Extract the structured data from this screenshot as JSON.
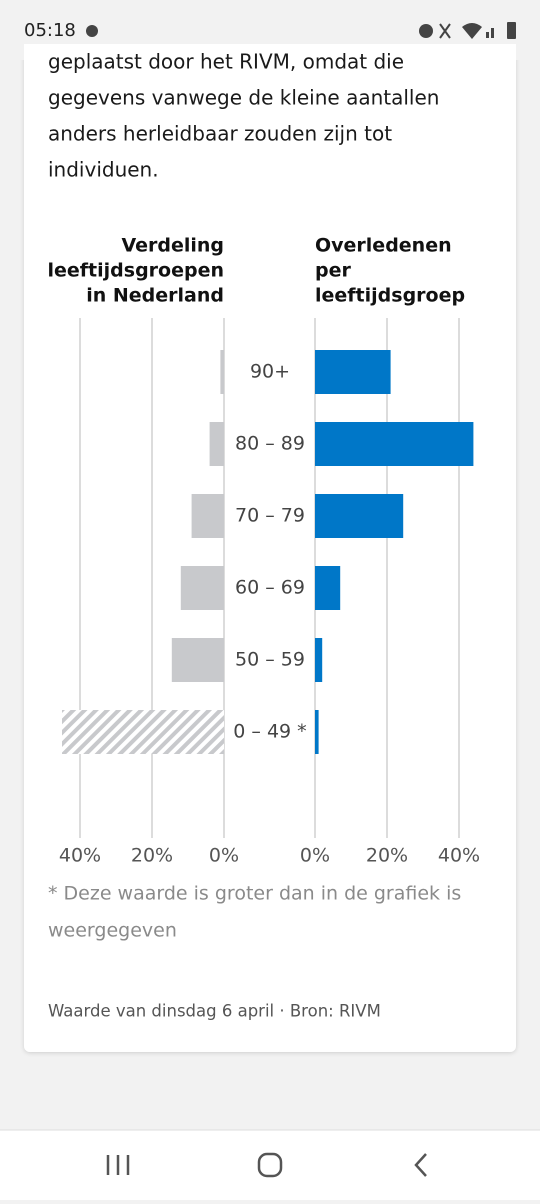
{
  "status_bar": {
    "time": "05:18"
  },
  "article": {
    "paragraph_lines": [
      "geplaatst door het RIVM, omdat die",
      "gegevens vanwege de kleine aantallen",
      "anders herleidbaar zouden zijn tot",
      "individuen."
    ]
  },
  "chart_data": {
    "type": "bar",
    "orientation": "horizontal",
    "panel_titles": [
      [
        "Verdeling",
        "leeftijdsgroepen",
        "in Nederland"
      ],
      [
        "Overledenen",
        "per",
        "leeftijdsgroep"
      ]
    ],
    "categories": [
      "90+",
      "80 – 89",
      "70 – 79",
      "60 – 69",
      "50 – 59",
      "0 – 49 *"
    ],
    "series": [
      {
        "color": "#c8c9cc",
        "side": "left",
        "values": [
          1,
          4,
          9,
          12,
          14.5,
          45
        ],
        "hatch": [
          false,
          false,
          false,
          false,
          false,
          true
        ]
      },
      {
        "color": "#0077c8",
        "side": "right",
        "values": [
          21,
          44,
          24.5,
          7,
          2,
          1
        ],
        "hatch": [
          false,
          false,
          false,
          false,
          false,
          false
        ]
      }
    ],
    "xlim": [
      0,
      45
    ],
    "xticks": [
      {
        "value": 0,
        "label": "0%"
      },
      {
        "value": 20,
        "label": "20%"
      },
      {
        "value": 40,
        "label": "40%"
      }
    ],
    "grid": true,
    "footnote_lines": [
      "* Deze waarde is groter dan in de grafiek is",
      "weergegeven"
    ],
    "source": "Waarde van dinsdag 6 april · Bron: RIVM"
  }
}
